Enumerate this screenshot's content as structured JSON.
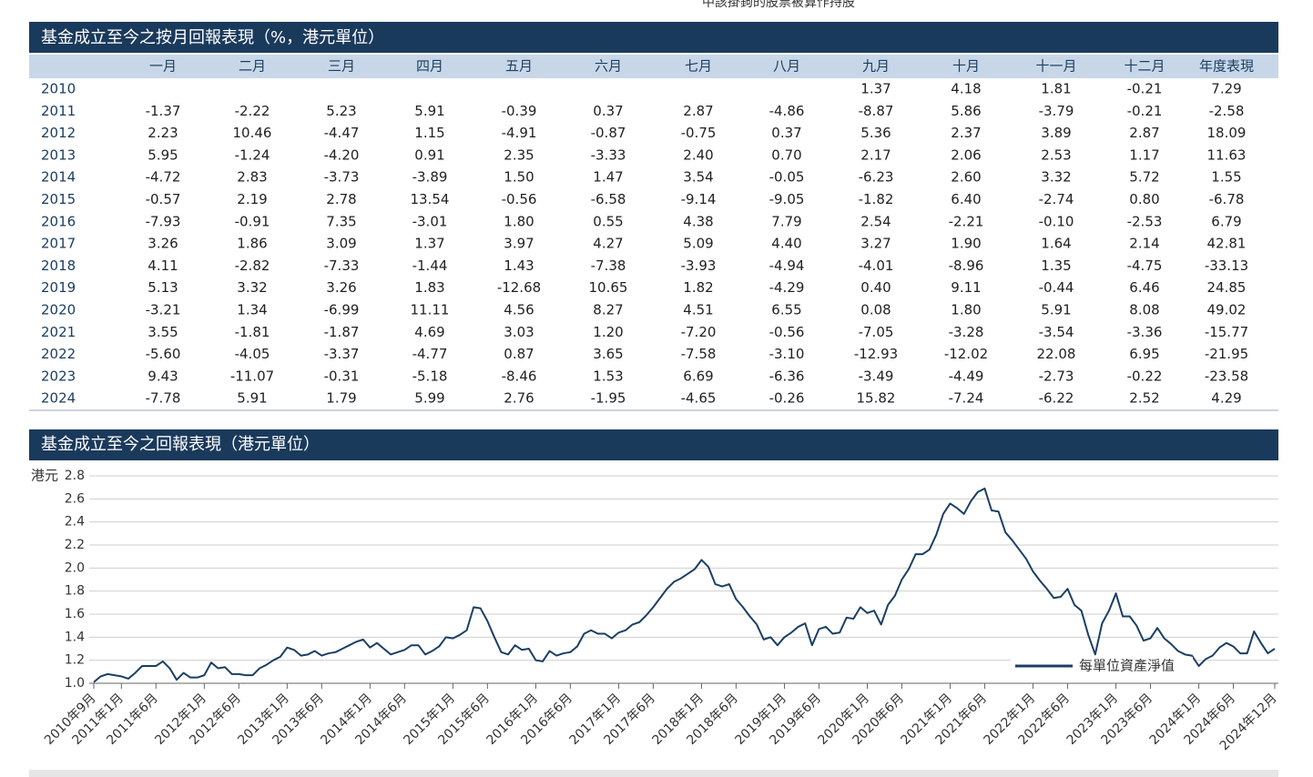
{
  "header_note": "中該掛鉤的股票被算作持股",
  "table": {
    "title": "基金成立至今之按月回報表現（%，港元單位）",
    "columns": [
      "一月",
      "二月",
      "三月",
      "四月",
      "五月",
      "六月",
      "七月",
      "八月",
      "九月",
      "十月",
      "十一月",
      "十二月",
      "年度表現"
    ],
    "rows": [
      [
        "2010",
        null,
        null,
        null,
        null,
        null,
        null,
        null,
        null,
        "1.37",
        "4.18",
        "1.81",
        "-0.21",
        "7.29"
      ],
      [
        "2011",
        "-1.37",
        "-2.22",
        "5.23",
        "5.91",
        "-0.39",
        "0.37",
        "2.87",
        "-4.86",
        "-8.87",
        "5.86",
        "-3.79",
        "-0.21",
        "-2.58"
      ],
      [
        "2012",
        "2.23",
        "10.46",
        "-4.47",
        "1.15",
        "-4.91",
        "-0.87",
        "-0.75",
        "0.37",
        "5.36",
        "2.37",
        "3.89",
        "2.87",
        "18.09"
      ],
      [
        "2013",
        "5.95",
        "-1.24",
        "-4.20",
        "0.91",
        "2.35",
        "-3.33",
        "2.40",
        "0.70",
        "2.17",
        "2.06",
        "2.53",
        "1.17",
        "11.63"
      ],
      [
        "2014",
        "-4.72",
        "2.83",
        "-3.73",
        "-3.89",
        "1.50",
        "1.47",
        "3.54",
        "-0.05",
        "-6.23",
        "2.60",
        "3.32",
        "5.72",
        "1.55"
      ],
      [
        "2015",
        "-0.57",
        "2.19",
        "2.78",
        "13.54",
        "-0.56",
        "-6.58",
        "-9.14",
        "-9.05",
        "-1.82",
        "6.40",
        "-2.74",
        "0.80",
        "-6.78"
      ],
      [
        "2016",
        "-7.93",
        "-0.91",
        "7.35",
        "-3.01",
        "1.80",
        "0.55",
        "4.38",
        "7.79",
        "2.54",
        "-2.21",
        "-0.10",
        "-2.53",
        "6.79"
      ],
      [
        "2017",
        "3.26",
        "1.86",
        "3.09",
        "1.37",
        "3.97",
        "4.27",
        "5.09",
        "4.40",
        "3.27",
        "1.90",
        "1.64",
        "2.14",
        "42.81"
      ],
      [
        "2018",
        "4.11",
        "-2.82",
        "-7.33",
        "-1.44",
        "1.43",
        "-7.38",
        "-3.93",
        "-4.94",
        "-4.01",
        "-8.96",
        "1.35",
        "-4.75",
        "-33.13"
      ],
      [
        "2019",
        "5.13",
        "3.32",
        "3.26",
        "1.83",
        "-12.68",
        "10.65",
        "1.82",
        "-4.29",
        "0.40",
        "9.11",
        "-0.44",
        "6.46",
        "24.85"
      ],
      [
        "2020",
        "-3.21",
        "1.34",
        "-6.99",
        "11.11",
        "4.56",
        "8.27",
        "4.51",
        "6.55",
        "0.08",
        "1.80",
        "5.91",
        "8.08",
        "49.02"
      ],
      [
        "2021",
        "3.55",
        "-1.81",
        "-1.87",
        "4.69",
        "3.03",
        "1.20",
        "-7.20",
        "-0.56",
        "-7.05",
        "-3.28",
        "-3.54",
        "-3.36",
        "-15.77"
      ],
      [
        "2022",
        "-5.60",
        "-4.05",
        "-3.37",
        "-4.77",
        "0.87",
        "3.65",
        "-7.58",
        "-3.10",
        "-12.93",
        "-12.02",
        "22.08",
        "6.95",
        "-21.95"
      ],
      [
        "2023",
        "9.43",
        "-11.07",
        "-0.31",
        "-5.18",
        "-8.46",
        "1.53",
        "6.69",
        "-6.36",
        "-3.49",
        "-4.49",
        "-2.73",
        "-0.22",
        "-23.58"
      ],
      [
        "2024",
        "-7.78",
        "5.91",
        "1.79",
        "5.99",
        "2.76",
        "-1.95",
        "-4.65",
        "-0.26",
        "15.82",
        "-7.24",
        "-6.22",
        "2.52",
        "4.29"
      ]
    ]
  },
  "chart_data": {
    "type": "line",
    "title": "基金成立至今之回報表現（港元單位）",
    "y_label": "港元",
    "legend": "bottom-right",
    "grid": true,
    "xlim": [
      "2010-09",
      "2024-12"
    ],
    "ylim": [
      1.0,
      2.8
    ],
    "yticks": [
      {
        "value": 1.0,
        "label": "1.0"
      },
      {
        "value": 1.2,
        "label": "1.2"
      },
      {
        "value": 1.4,
        "label": "1.4"
      },
      {
        "value": 1.6,
        "label": "1.6"
      },
      {
        "value": 1.8,
        "label": "1.8"
      },
      {
        "value": 2.0,
        "label": "2.0"
      },
      {
        "value": 2.2,
        "label": "2.2"
      },
      {
        "value": 2.4,
        "label": "2.4"
      },
      {
        "value": 2.6,
        "label": "2.6"
      },
      {
        "value": 2.8,
        "label": "2.8"
      }
    ],
    "xticks": [
      {
        "value": "2010-09",
        "label": "2010年9月"
      },
      {
        "value": "2011-01",
        "label": "2011年1月"
      },
      {
        "value": "2011-06",
        "label": "2011年6月"
      },
      {
        "value": "2012-01",
        "label": "2012年1月"
      },
      {
        "value": "2012-06",
        "label": "2012年6月"
      },
      {
        "value": "2013-01",
        "label": "2013年1月"
      },
      {
        "value": "2013-06",
        "label": "2013年6月"
      },
      {
        "value": "2014-01",
        "label": "2014年1月"
      },
      {
        "value": "2014-06",
        "label": "2014年6月"
      },
      {
        "value": "2015-01",
        "label": "2015年1月"
      },
      {
        "value": "2015-06",
        "label": "2015年6月"
      },
      {
        "value": "2016-01",
        "label": "2016年1月"
      },
      {
        "value": "2016-06",
        "label": "2016年6月"
      },
      {
        "value": "2017-01",
        "label": "2017年1月"
      },
      {
        "value": "2017-06",
        "label": "2017年6月"
      },
      {
        "value": "2018-01",
        "label": "2018年1月"
      },
      {
        "value": "2018-06",
        "label": "2018年6月"
      },
      {
        "value": "2019-01",
        "label": "2019年1月"
      },
      {
        "value": "2019-06",
        "label": "2019年6月"
      },
      {
        "value": "2020-01",
        "label": "2020年1月"
      },
      {
        "value": "2020-06",
        "label": "2020年6月"
      },
      {
        "value": "2021-01",
        "label": "2021年1月"
      },
      {
        "value": "2021-06",
        "label": "2021年6月"
      },
      {
        "value": "2022-01",
        "label": "2022年1月"
      },
      {
        "value": "2022-06",
        "label": "2022年6月"
      },
      {
        "value": "2023-01",
        "label": "2023年1月"
      },
      {
        "value": "2023-06",
        "label": "2023年6月"
      },
      {
        "value": "2024-01",
        "label": "2024年1月"
      },
      {
        "value": "2024-06",
        "label": "2024年6月"
      },
      {
        "value": "2024-12",
        "label": "2024年12月"
      }
    ],
    "x": [
      "2010-09",
      "2010-10",
      "2010-11",
      "2010-12",
      "2011-01",
      "2011-02",
      "2011-03",
      "2011-04",
      "2011-05",
      "2011-06",
      "2011-07",
      "2011-08",
      "2011-09",
      "2011-10",
      "2011-11",
      "2011-12",
      "2012-01",
      "2012-02",
      "2012-03",
      "2012-04",
      "2012-05",
      "2012-06",
      "2012-07",
      "2012-08",
      "2012-09",
      "2012-10",
      "2012-11",
      "2012-12",
      "2013-01",
      "2013-02",
      "2013-03",
      "2013-04",
      "2013-05",
      "2013-06",
      "2013-07",
      "2013-08",
      "2013-09",
      "2013-10",
      "2013-11",
      "2013-12",
      "2014-01",
      "2014-02",
      "2014-03",
      "2014-04",
      "2014-05",
      "2014-06",
      "2014-07",
      "2014-08",
      "2014-09",
      "2014-10",
      "2014-11",
      "2014-12",
      "2015-01",
      "2015-02",
      "2015-03",
      "2015-04",
      "2015-05",
      "2015-06",
      "2015-07",
      "2015-08",
      "2015-09",
      "2015-10",
      "2015-11",
      "2015-12",
      "2016-01",
      "2016-02",
      "2016-03",
      "2016-04",
      "2016-05",
      "2016-06",
      "2016-07",
      "2016-08",
      "2016-09",
      "2016-10",
      "2016-11",
      "2016-12",
      "2017-01",
      "2017-02",
      "2017-03",
      "2017-04",
      "2017-05",
      "2017-06",
      "2017-07",
      "2017-08",
      "2017-09",
      "2017-10",
      "2017-11",
      "2017-12",
      "2018-01",
      "2018-02",
      "2018-03",
      "2018-04",
      "2018-05",
      "2018-06",
      "2018-07",
      "2018-08",
      "2018-09",
      "2018-10",
      "2018-11",
      "2018-12",
      "2019-01",
      "2019-02",
      "2019-03",
      "2019-04",
      "2019-05",
      "2019-06",
      "2019-07",
      "2019-08",
      "2019-09",
      "2019-10",
      "2019-11",
      "2019-12",
      "2020-01",
      "2020-02",
      "2020-03",
      "2020-04",
      "2020-05",
      "2020-06",
      "2020-07",
      "2020-08",
      "2020-09",
      "2020-10",
      "2020-11",
      "2020-12",
      "2021-01",
      "2021-02",
      "2021-03",
      "2021-04",
      "2021-05",
      "2021-06",
      "2021-07",
      "2021-08",
      "2021-09",
      "2021-10",
      "2021-11",
      "2021-12",
      "2022-01",
      "2022-02",
      "2022-03",
      "2022-04",
      "2022-05",
      "2022-06",
      "2022-07",
      "2022-08",
      "2022-09",
      "2022-10",
      "2022-11",
      "2022-12",
      "2023-01",
      "2023-02",
      "2023-03",
      "2023-04",
      "2023-05",
      "2023-06",
      "2023-07",
      "2023-08",
      "2023-09",
      "2023-10",
      "2023-11",
      "2023-12",
      "2024-01",
      "2024-02",
      "2024-03",
      "2024-04",
      "2024-05",
      "2024-06",
      "2024-07",
      "2024-08",
      "2024-09",
      "2024-10",
      "2024-11",
      "2024-12"
    ],
    "series": [
      {
        "name": "每單位資產淨值",
        "color": "#1b3f63",
        "values": [
          1.01,
          1.06,
          1.08,
          1.07,
          1.06,
          1.04,
          1.09,
          1.15,
          1.15,
          1.15,
          1.19,
          1.13,
          1.03,
          1.09,
          1.05,
          1.05,
          1.07,
          1.18,
          1.13,
          1.14,
          1.08,
          1.08,
          1.07,
          1.07,
          1.13,
          1.16,
          1.2,
          1.23,
          1.31,
          1.29,
          1.24,
          1.25,
          1.28,
          1.24,
          1.26,
          1.27,
          1.3,
          1.33,
          1.36,
          1.38,
          1.31,
          1.35,
          1.3,
          1.25,
          1.27,
          1.29,
          1.33,
          1.33,
          1.25,
          1.28,
          1.32,
          1.4,
          1.39,
          1.42,
          1.46,
          1.66,
          1.65,
          1.54,
          1.4,
          1.27,
          1.25,
          1.33,
          1.29,
          1.3,
          1.2,
          1.19,
          1.28,
          1.24,
          1.26,
          1.27,
          1.32,
          1.43,
          1.46,
          1.43,
          1.43,
          1.39,
          1.44,
          1.46,
          1.51,
          1.53,
          1.59,
          1.66,
          1.74,
          1.82,
          1.88,
          1.91,
          1.95,
          1.99,
          2.07,
          2.01,
          1.86,
          1.84,
          1.86,
          1.73,
          1.66,
          1.58,
          1.51,
          1.38,
          1.4,
          1.33,
          1.4,
          1.44,
          1.49,
          1.52,
          1.33,
          1.47,
          1.49,
          1.43,
          1.44,
          1.57,
          1.56,
          1.66,
          1.61,
          1.63,
          1.51,
          1.68,
          1.76,
          1.9,
          1.99,
          2.12,
          2.12,
          2.16,
          2.29,
          2.47,
          2.56,
          2.52,
          2.47,
          2.58,
          2.66,
          2.69,
          2.5,
          2.49,
          2.31,
          2.24,
          2.16,
          2.08,
          1.97,
          1.89,
          1.82,
          1.74,
          1.75,
          1.82,
          1.68,
          1.63,
          1.42,
          1.25,
          1.52,
          1.63,
          1.78,
          1.58,
          1.58,
          1.5,
          1.37,
          1.39,
          1.48,
          1.39,
          1.34,
          1.28,
          1.25,
          1.24,
          1.15,
          1.21,
          1.24,
          1.31,
          1.35,
          1.32,
          1.26,
          1.26,
          1.45,
          1.35,
          1.26,
          1.3
        ]
      }
    ]
  }
}
